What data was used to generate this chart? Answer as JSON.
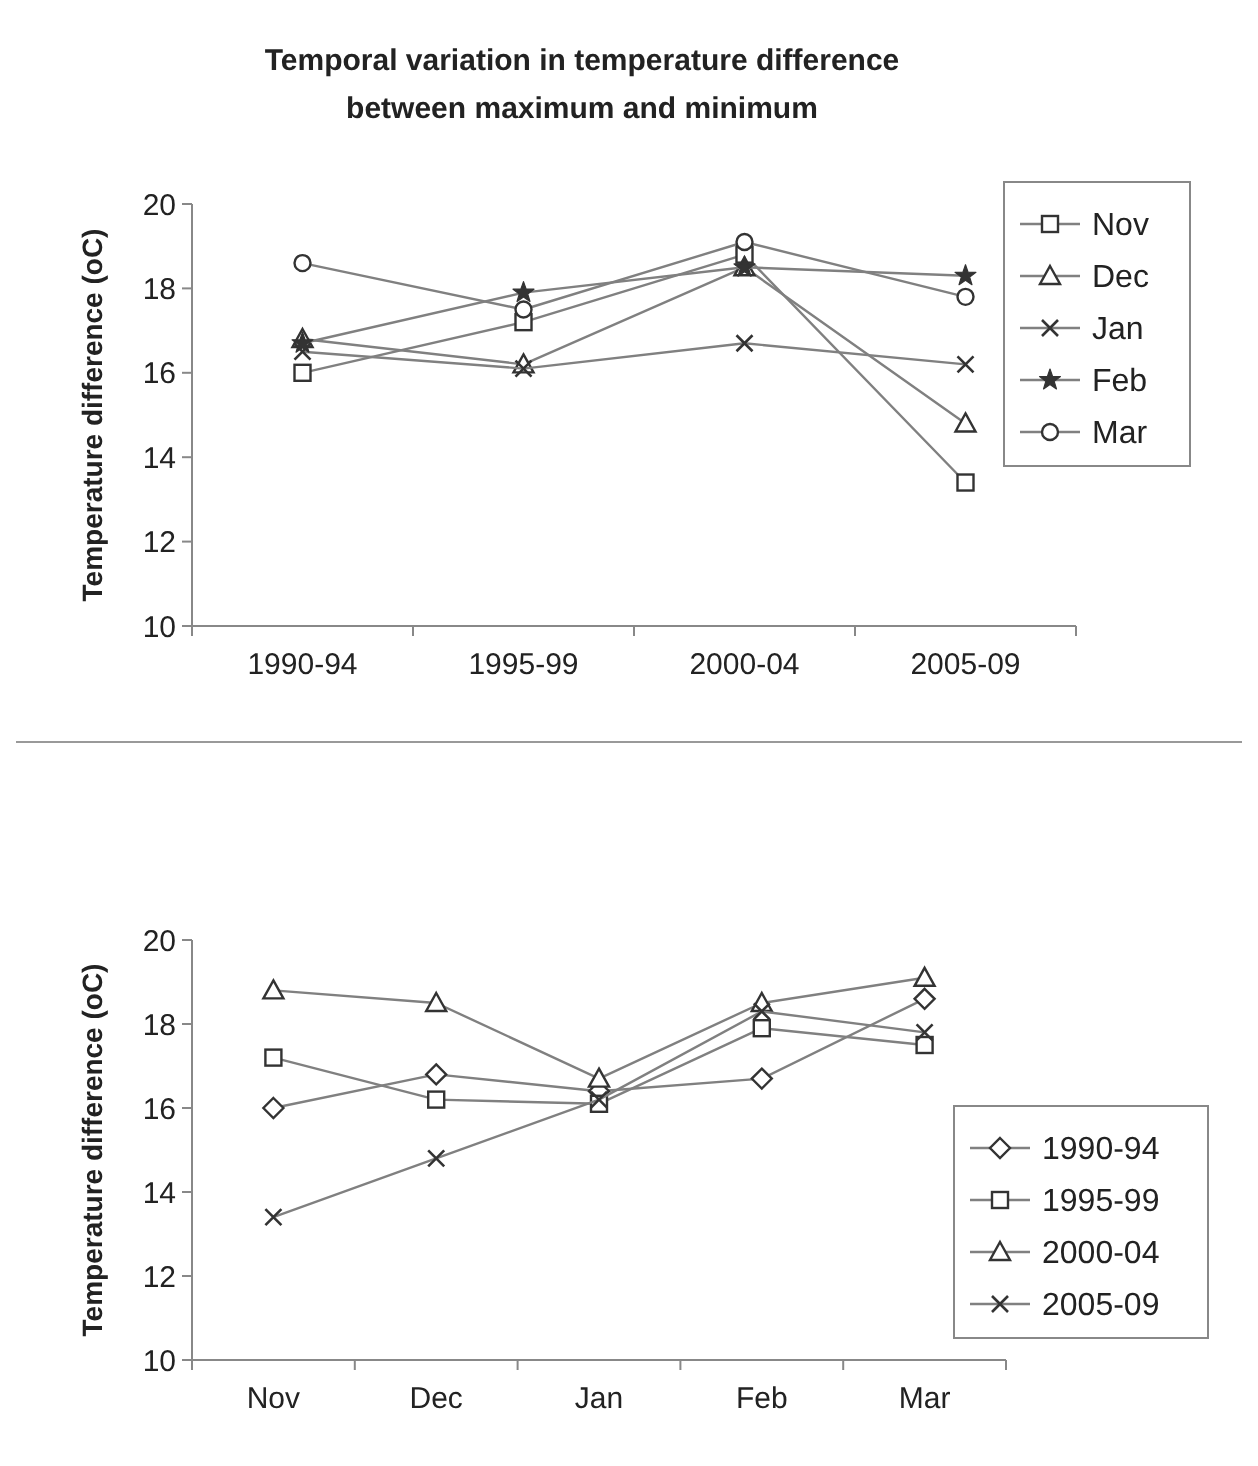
{
  "chart_data": [
    {
      "type": "line",
      "title": "Temporal variation in temperature difference\nbetween maximum and minimum",
      "ylabel": "Temperature difference (oC)",
      "categories": [
        "1990-94",
        "1995-99",
        "2000-04",
        "2005-09"
      ],
      "ylim": [
        10,
        20
      ],
      "yticks": [
        10,
        12,
        14,
        16,
        18,
        20
      ],
      "grid": false,
      "legend": "right",
      "series": [
        {
          "name": "Nov",
          "color": "#808080",
          "marker": "square",
          "values": [
            16.0,
            17.2,
            18.8,
            13.4
          ]
        },
        {
          "name": "Dec",
          "color": "#808080",
          "marker": "triangle",
          "values": [
            16.8,
            16.2,
            18.5,
            14.8
          ]
        },
        {
          "name": "Jan",
          "color": "#808080",
          "marker": "cross",
          "values": [
            16.5,
            16.1,
            16.7,
            16.2
          ]
        },
        {
          "name": "Feb",
          "color": "#808080",
          "marker": "star",
          "values": [
            16.7,
            17.9,
            18.5,
            18.3
          ]
        },
        {
          "name": "Mar",
          "color": "#808080",
          "marker": "circle",
          "values": [
            18.6,
            17.5,
            19.1,
            17.8
          ]
        }
      ]
    },
    {
      "type": "line",
      "ylabel": "Temperature difference (oC)",
      "categories": [
        "Nov",
        "Dec",
        "Jan",
        "Feb",
        "Mar"
      ],
      "ylim": [
        10,
        20
      ],
      "yticks": [
        10,
        12,
        14,
        16,
        18,
        20
      ],
      "grid": false,
      "legend": "right",
      "series": [
        {
          "name": "1990-94",
          "color": "#808080",
          "marker": "diamond",
          "values": [
            16.0,
            16.8,
            16.4,
            16.7,
            18.6
          ]
        },
        {
          "name": "1995-99",
          "color": "#808080",
          "marker": "square",
          "values": [
            17.2,
            16.2,
            16.1,
            17.9,
            17.5
          ]
        },
        {
          "name": "2000-04",
          "color": "#808080",
          "marker": "triangle",
          "values": [
            18.8,
            18.5,
            16.7,
            18.5,
            19.1
          ]
        },
        {
          "name": "2005-09",
          "color": "#808080",
          "marker": "cross",
          "values": [
            13.4,
            14.8,
            16.2,
            18.3,
            17.8
          ]
        }
      ]
    }
  ]
}
